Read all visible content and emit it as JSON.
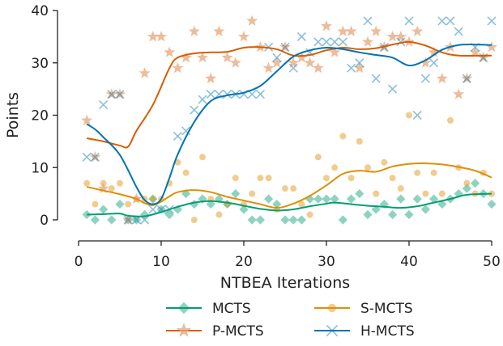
{
  "chart_data": {
    "type": "scatter",
    "xlabel": "NTBEA Iterations",
    "ylabel": "Points",
    "xlim": [
      0,
      50
    ],
    "ylim": [
      0,
      40
    ],
    "xticks": [
      0,
      10,
      20,
      30,
      40,
      50
    ],
    "yticks": [
      0,
      10,
      20,
      30,
      40
    ],
    "grid": false,
    "legend": {
      "position": "bottom-center",
      "columns": 2
    },
    "series": [
      {
        "name": "MCTS",
        "color": "#029e73",
        "marker": "diamond",
        "points": [
          [
            1,
            1
          ],
          [
            2,
            0
          ],
          [
            3,
            2
          ],
          [
            4,
            0
          ],
          [
            5,
            3
          ],
          [
            6,
            0
          ],
          [
            7,
            0
          ],
          [
            8,
            1
          ],
          [
            9,
            4
          ],
          [
            10,
            2
          ],
          [
            11,
            1
          ],
          [
            12,
            2
          ],
          [
            13,
            5
          ],
          [
            14,
            3
          ],
          [
            15,
            4
          ],
          [
            16,
            3
          ],
          [
            17,
            4
          ],
          [
            18,
            3
          ],
          [
            19,
            5
          ],
          [
            20,
            2
          ],
          [
            21,
            0
          ],
          [
            22,
            0
          ],
          [
            23,
            4
          ],
          [
            24,
            3
          ],
          [
            25,
            0
          ],
          [
            26,
            0
          ],
          [
            27,
            0
          ],
          [
            28,
            4
          ],
          [
            29,
            4
          ],
          [
            30,
            4
          ],
          [
            31,
            4
          ],
          [
            32,
            0
          ],
          [
            33,
            4
          ],
          [
            34,
            5
          ],
          [
            35,
            1
          ],
          [
            36,
            2
          ],
          [
            37,
            3
          ],
          [
            38,
            1
          ],
          [
            39,
            4
          ],
          [
            40,
            1
          ],
          [
            41,
            4
          ],
          [
            42,
            2
          ],
          [
            43,
            4
          ],
          [
            44,
            3
          ],
          [
            45,
            4
          ],
          [
            46,
            5
          ],
          [
            47,
            6
          ],
          [
            48,
            7
          ],
          [
            49,
            5
          ],
          [
            50,
            3
          ]
        ],
        "trend": [
          [
            1,
            1
          ],
          [
            3,
            1.1
          ],
          [
            5,
            1.2
          ],
          [
            6,
            0.8
          ],
          [
            8,
            0.7
          ],
          [
            10,
            1.5
          ],
          [
            12,
            2.5
          ],
          [
            14,
            3.3
          ],
          [
            16,
            3.6
          ],
          [
            18,
            3.3
          ],
          [
            20,
            2.7
          ],
          [
            22,
            2.1
          ],
          [
            24,
            1.8
          ],
          [
            26,
            2
          ],
          [
            28,
            2.6
          ],
          [
            30,
            3.1
          ],
          [
            31,
            3.3
          ],
          [
            33,
            3
          ],
          [
            35,
            2.7
          ],
          [
            37,
            2.5
          ],
          [
            39,
            2.3
          ],
          [
            41,
            2.6
          ],
          [
            43,
            3.3
          ],
          [
            45,
            4
          ],
          [
            47,
            4.8
          ],
          [
            50,
            5
          ]
        ]
      },
      {
        "name": "S-MCTS",
        "color": "#de8f05",
        "marker": "circle",
        "points": [
          [
            1,
            7
          ],
          [
            2,
            3
          ],
          [
            3,
            7
          ],
          [
            4,
            6
          ],
          [
            5,
            7
          ],
          [
            6,
            3
          ],
          [
            7,
            4
          ],
          [
            8,
            4
          ],
          [
            9,
            4
          ],
          [
            10,
            4
          ],
          [
            11,
            7
          ],
          [
            12,
            11
          ],
          [
            13,
            9
          ],
          [
            14,
            0
          ],
          [
            15,
            12
          ],
          [
            16,
            4
          ],
          [
            17,
            1
          ],
          [
            18,
            3
          ],
          [
            19,
            8
          ],
          [
            20,
            3
          ],
          [
            21,
            5
          ],
          [
            22,
            8
          ],
          [
            23,
            8
          ],
          [
            24,
            2
          ],
          [
            25,
            6
          ],
          [
            26,
            6
          ],
          [
            27,
            3
          ],
          [
            28,
            1
          ],
          [
            29,
            12
          ],
          [
            30,
            8
          ],
          [
            31,
            10
          ],
          [
            32,
            16
          ],
          [
            33,
            8
          ],
          [
            34,
            15
          ],
          [
            35,
            10
          ],
          [
            36,
            5
          ],
          [
            37,
            11
          ],
          [
            38,
            8
          ],
          [
            39,
            6
          ],
          [
            40,
            20
          ],
          [
            41,
            9
          ],
          [
            42,
            5
          ],
          [
            43,
            9
          ],
          [
            44,
            5
          ],
          [
            45,
            19
          ],
          [
            46,
            10
          ],
          [
            47,
            7
          ],
          [
            48,
            5
          ],
          [
            49,
            9
          ],
          [
            50,
            5
          ]
        ],
        "trend": [
          [
            1,
            6.3
          ],
          [
            3,
            5.6
          ],
          [
            5,
            4.9
          ],
          [
            7,
            4
          ],
          [
            8,
            3.2
          ],
          [
            9,
            2.8
          ],
          [
            10,
            3.5
          ],
          [
            11,
            4.5
          ],
          [
            12,
            5.3
          ],
          [
            14,
            5.7
          ],
          [
            16,
            5.3
          ],
          [
            18,
            4.4
          ],
          [
            20,
            3.7
          ],
          [
            22,
            3
          ],
          [
            24,
            2.3
          ],
          [
            26,
            3.1
          ],
          [
            28,
            4.6
          ],
          [
            30,
            6.6
          ],
          [
            32,
            8.8
          ],
          [
            34,
            9.4
          ],
          [
            36,
            9.2
          ],
          [
            38,
            10.2
          ],
          [
            40,
            10.7
          ],
          [
            42,
            10.8
          ],
          [
            44,
            10.6
          ],
          [
            46,
            10.1
          ],
          [
            48,
            9.4
          ],
          [
            50,
            8.1
          ]
        ]
      },
      {
        "name": "P-MCTS",
        "color": "#e6a57a",
        "line_color": "#d55e00",
        "marker": "star",
        "points": [
          [
            1,
            19
          ],
          [
            2,
            12
          ],
          [
            3,
            6
          ],
          [
            4,
            24
          ],
          [
            5,
            24
          ],
          [
            6,
            0
          ],
          [
            7,
            4
          ],
          [
            8,
            28
          ],
          [
            9,
            35
          ],
          [
            10,
            35
          ],
          [
            11,
            32
          ],
          [
            12,
            29
          ],
          [
            13,
            31
          ],
          [
            14,
            36
          ],
          [
            15,
            31
          ],
          [
            16,
            27
          ],
          [
            17,
            36
          ],
          [
            18,
            31
          ],
          [
            19,
            30
          ],
          [
            20,
            35
          ],
          [
            21,
            38
          ],
          [
            22,
            33
          ],
          [
            23,
            29
          ],
          [
            24,
            30
          ],
          [
            25,
            33
          ],
          [
            26,
            30
          ],
          [
            27,
            31
          ],
          [
            28,
            30
          ],
          [
            29,
            29
          ],
          [
            30,
            37
          ],
          [
            31,
            32
          ],
          [
            32,
            36
          ],
          [
            33,
            36
          ],
          [
            34,
            29
          ],
          [
            35,
            34
          ],
          [
            36,
            36
          ],
          [
            37,
            33
          ],
          [
            38,
            35
          ],
          [
            39,
            35
          ],
          [
            40,
            34
          ],
          [
            41,
            36
          ],
          [
            42,
            30
          ],
          [
            43,
            32
          ],
          [
            44,
            27
          ],
          [
            45,
            33
          ],
          [
            46,
            24
          ],
          [
            47,
            27
          ],
          [
            48,
            32
          ],
          [
            49,
            31
          ],
          [
            50,
            33
          ]
        ],
        "trend": [
          [
            1,
            15.6
          ],
          [
            3,
            15
          ],
          [
            5,
            14.2
          ],
          [
            6,
            14
          ],
          [
            7,
            17
          ],
          [
            9,
            22
          ],
          [
            11,
            29
          ],
          [
            12,
            31
          ],
          [
            14,
            31.8
          ],
          [
            16,
            32
          ],
          [
            18,
            32.1
          ],
          [
            20,
            32.9
          ],
          [
            22,
            33
          ],
          [
            24,
            32.6
          ],
          [
            26,
            31.4
          ],
          [
            28,
            31.5
          ],
          [
            30,
            32.4
          ],
          [
            32,
            32.9
          ],
          [
            34,
            32.6
          ],
          [
            36,
            32.8
          ],
          [
            38,
            33.5
          ],
          [
            40,
            34
          ],
          [
            42,
            33.3
          ],
          [
            44,
            32
          ],
          [
            46,
            31.4
          ],
          [
            50,
            31.4
          ]
        ]
      },
      {
        "name": "H-MCTS",
        "color": "#0173b2",
        "marker": "x",
        "points": [
          [
            1,
            12
          ],
          [
            2,
            12
          ],
          [
            3,
            22
          ],
          [
            4,
            24
          ],
          [
            5,
            24
          ],
          [
            6,
            0
          ],
          [
            7,
            0
          ],
          [
            8,
            0
          ],
          [
            9,
            2
          ],
          [
            10,
            2
          ],
          [
            11,
            2
          ],
          [
            12,
            16
          ],
          [
            13,
            17
          ],
          [
            14,
            21
          ],
          [
            15,
            23
          ],
          [
            16,
            24
          ],
          [
            17,
            24
          ],
          [
            18,
            24
          ],
          [
            19,
            24
          ],
          [
            20,
            24
          ],
          [
            21,
            24
          ],
          [
            22,
            24
          ],
          [
            23,
            33
          ],
          [
            24,
            31
          ],
          [
            25,
            33
          ],
          [
            26,
            29
          ],
          [
            27,
            35
          ],
          [
            28,
            32
          ],
          [
            29,
            34
          ],
          [
            30,
            34
          ],
          [
            31,
            34
          ],
          [
            32,
            34
          ],
          [
            33,
            29
          ],
          [
            34,
            30
          ],
          [
            35,
            38
          ],
          [
            36,
            27
          ],
          [
            37,
            33
          ],
          [
            38,
            25
          ],
          [
            39,
            34
          ],
          [
            40,
            38
          ],
          [
            41,
            20
          ],
          [
            42,
            27
          ],
          [
            43,
            30
          ],
          [
            44,
            38
          ],
          [
            45,
            38
          ],
          [
            46,
            36
          ],
          [
            47,
            27
          ],
          [
            48,
            33
          ],
          [
            49,
            31
          ],
          [
            50,
            38
          ]
        ],
        "trend": [
          [
            1,
            18.3
          ],
          [
            2,
            17.3
          ],
          [
            3,
            15.8
          ],
          [
            5,
            12.4
          ],
          [
            7,
            6.3
          ],
          [
            8,
            3.8
          ],
          [
            9,
            3
          ],
          [
            10,
            4
          ],
          [
            11,
            8
          ],
          [
            12,
            12.5
          ],
          [
            14,
            18.7
          ],
          [
            16,
            22.7
          ],
          [
            18,
            23.8
          ],
          [
            20,
            24.3
          ],
          [
            22,
            25.6
          ],
          [
            24,
            28.4
          ],
          [
            26,
            31.2
          ],
          [
            28,
            32.4
          ],
          [
            30,
            32.9
          ],
          [
            32,
            32.6
          ],
          [
            34,
            32
          ],
          [
            36,
            31.5
          ],
          [
            38,
            31
          ],
          [
            40,
            29.5
          ],
          [
            42,
            30.5
          ],
          [
            44,
            32.5
          ],
          [
            46,
            33.4
          ],
          [
            48,
            33.5
          ],
          [
            50,
            33.4
          ]
        ]
      }
    ]
  }
}
